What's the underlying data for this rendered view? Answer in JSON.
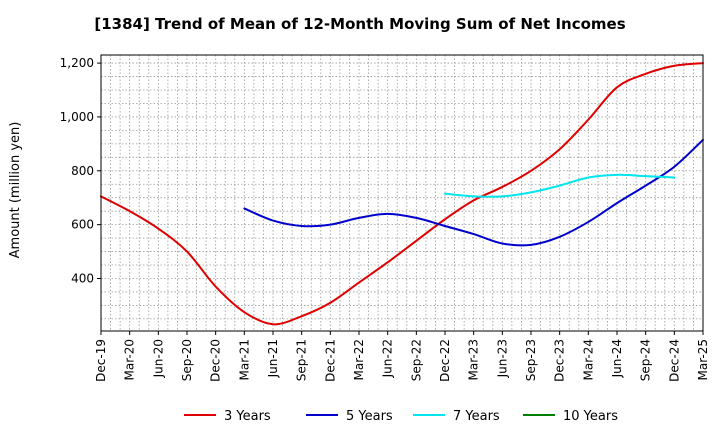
{
  "chart_data": {
    "type": "line",
    "title": "[1384]  Trend of Mean of 12-Month Moving Sum of Net Incomes",
    "xlabel": "",
    "ylabel": "Amount (million yen)",
    "x_ticks": [
      "Dec-19",
      "Mar-20",
      "Jun-20",
      "Sep-20",
      "Dec-20",
      "Mar-21",
      "Jun-21",
      "Sep-21",
      "Dec-21",
      "Mar-22",
      "Jun-22",
      "Sep-22",
      "Dec-22",
      "Mar-23",
      "Jun-23",
      "Sep-23",
      "Dec-23",
      "Mar-24",
      "Jun-24",
      "Sep-24",
      "Dec-24",
      "Mar-25"
    ],
    "y_ticks": [
      400,
      600,
      800,
      1000,
      1200
    ],
    "y_tick_labels": [
      "400",
      "600",
      "800",
      "1,000",
      "1,200"
    ],
    "ylim": [
      205,
      1230
    ],
    "grid": true,
    "legend_position": "bottom",
    "series": [
      {
        "name": "3 Years",
        "color": "#e00000",
        "values": [
          [
            0,
            705
          ],
          [
            1,
            650
          ],
          [
            2,
            585
          ],
          [
            3,
            500
          ],
          [
            4,
            370
          ],
          [
            5,
            275
          ],
          [
            6,
            230
          ],
          [
            7,
            260
          ],
          [
            8,
            310
          ],
          [
            9,
            385
          ],
          [
            10,
            460
          ],
          [
            11,
            540
          ],
          [
            12,
            620
          ],
          [
            13,
            690
          ],
          [
            14,
            740
          ],
          [
            15,
            800
          ],
          [
            16,
            880
          ],
          [
            17,
            990
          ],
          [
            18,
            1110
          ],
          [
            19,
            1160
          ],
          [
            20,
            1190
          ],
          [
            21,
            1200
          ]
        ]
      },
      {
        "name": "5 Years",
        "color": "#0000cc",
        "values": [
          [
            5,
            660
          ],
          [
            6,
            615
          ],
          [
            7,
            595
          ],
          [
            8,
            600
          ],
          [
            9,
            625
          ],
          [
            10,
            640
          ],
          [
            11,
            625
          ],
          [
            12,
            595
          ],
          [
            13,
            565
          ],
          [
            14,
            530
          ],
          [
            15,
            525
          ],
          [
            16,
            555
          ],
          [
            17,
            610
          ],
          [
            18,
            680
          ],
          [
            19,
            745
          ],
          [
            20,
            815
          ],
          [
            21,
            915
          ]
        ]
      },
      {
        "name": "7 Years",
        "color": "#00e5ee",
        "values": [
          [
            12,
            715
          ],
          [
            13,
            705
          ],
          [
            14,
            705
          ],
          [
            15,
            720
          ],
          [
            16,
            745
          ],
          [
            17,
            775
          ],
          [
            18,
            785
          ],
          [
            19,
            780
          ],
          [
            20,
            775
          ]
        ]
      },
      {
        "name": "10 Years",
        "color": "#008000",
        "values": []
      }
    ]
  }
}
